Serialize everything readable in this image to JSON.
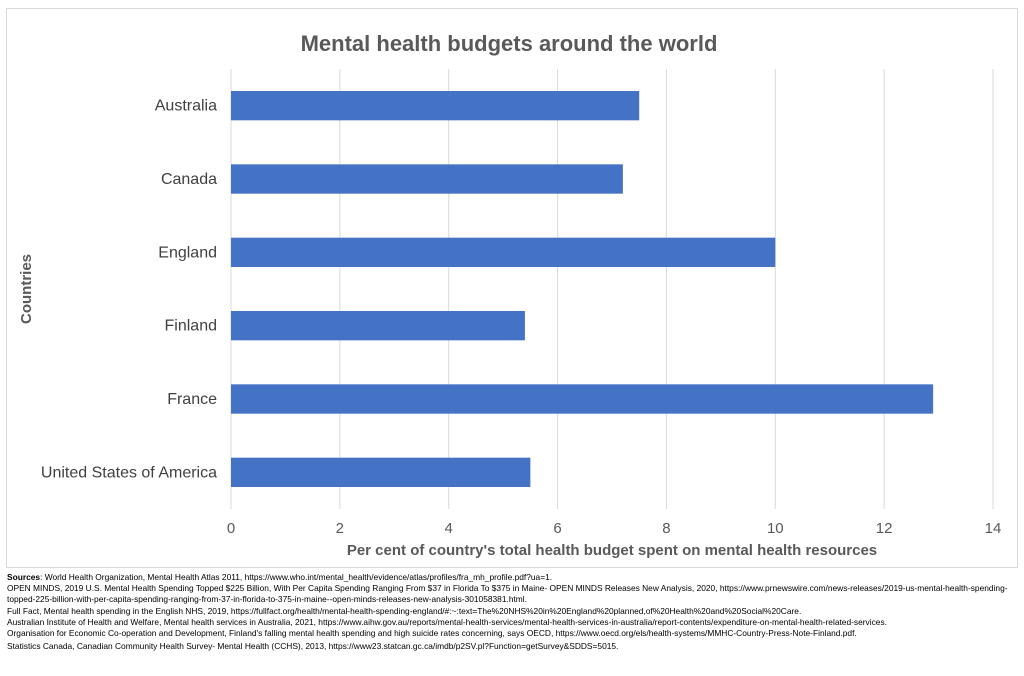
{
  "chart_data": {
    "type": "bar",
    "orientation": "horizontal",
    "title": "Mental health budgets around the world",
    "xlabel": "Per cent of country's total health budget spent on mental health resources",
    "ylabel": "Countries",
    "categories": [
      "Australia",
      "Canada",
      "England",
      "Finland",
      "France",
      "United States of America"
    ],
    "values": [
      7.5,
      7.2,
      10.0,
      5.4,
      12.9,
      5.5
    ],
    "xlim": [
      0,
      14
    ],
    "xticks": [
      "0",
      "2",
      "4",
      "6",
      "8",
      "10",
      "12",
      "14"
    ],
    "grid": "vertical",
    "legend": "none",
    "bar_color": "#4472C4"
  },
  "sources": {
    "label": "Sources",
    "lines": [
      ": World Health Organization, Mental Health Atlas 2011, https://www.who.int/mental_health/evidence/atlas/profiles/fra_mh_profile.pdf?ua=1.",
      "OPEN MINDS, 2019 U.S. Mental Health Spending Topped $225 Billion, With Per Capita Spending Ranging From $37 in Florida To $375 in Maine- OPEN MINDS Releases New Analysis, 2020, https://www.prnewswire.com/news-releases/2019-us-mental-health-spending-topped-225-billion-with-per-capita-spending-ranging-from-37-in-florida-to-375-in-maine--open-minds-releases-new-analysis-301058381.html.",
      "Full Fact, Mental health spending in the English NHS, 2019, https://fullfact.org/health/mental-health-spending-england/#:~:text=The%20NHS%20in%20England%20planned,of%20Health%20and%20Social%20Care.",
      "Australian Institute of Health and Welfare, Mental health services in Australia, 2021, https://www.aihw.gov.au/reports/mental-health-services/mental-health-services-in-australia/report-contents/expenditure-on-mental-health-related-services.",
      "Organisation for Economic Co-operation and Development, Finland's falling mental health spending and high suicide rates concerning, says OECD, https://www.oecd.org/els/health-systems/MMHC-Country-Press-Note-Finland.pdf.",
      "Statistics Canada, Canadian Community Health Survey- Mental Health (CCHS), 2013, https://www23.statcan.gc.ca/imdb/p2SV.pl?Function=getSurvey&SDDS=5015."
    ]
  }
}
